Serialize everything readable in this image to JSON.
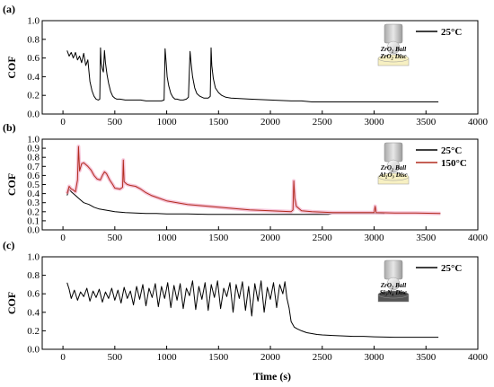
{
  "chart_data": [
    {
      "type": "line",
      "panel_label": "(a)",
      "ylabel": "COF",
      "xlabel": "",
      "xlim": [
        -200,
        4000
      ],
      "ylim": [
        0.0,
        1.0
      ],
      "xticks": [
        "0",
        "500",
        "1000",
        "1500",
        "2000",
        "2500",
        "3000",
        "3500",
        "4000"
      ],
      "yticks": [
        "0.0",
        "0.2",
        "0.4",
        "0.6",
        "0.8",
        "1.0"
      ],
      "legend_position": "top-right",
      "inset": {
        "ball": "ZrO2 Ball",
        "disc": "ZrO2 Disc",
        "disc_color": "#f7f0c2"
      },
      "series": [
        {
          "name": "25°C",
          "color": "#000000",
          "x": [
            40,
            60,
            80,
            100,
            120,
            140,
            160,
            180,
            200,
            220,
            240,
            260,
            280,
            300,
            320,
            340,
            355,
            362,
            368,
            380,
            390,
            400,
            410,
            425,
            440,
            460,
            480,
            500,
            520,
            550,
            600,
            650,
            700,
            750,
            800,
            850,
            900,
            950,
            975,
            985,
            995,
            1005,
            1020,
            1040,
            1060,
            1080,
            1100,
            1130,
            1160,
            1190,
            1210,
            1225,
            1235,
            1250,
            1270,
            1290,
            1320,
            1360,
            1400,
            1420,
            1428,
            1435,
            1450,
            1470,
            1500,
            1530,
            1570,
            1620,
            1700,
            1800,
            1900,
            2000,
            2100,
            2200,
            2300,
            2400,
            2600,
            2800,
            3000,
            3200,
            3400,
            3620
          ],
          "y": [
            0.68,
            0.62,
            0.66,
            0.6,
            0.66,
            0.58,
            0.62,
            0.55,
            0.65,
            0.52,
            0.58,
            0.35,
            0.25,
            0.19,
            0.16,
            0.15,
            0.16,
            0.71,
            0.55,
            0.48,
            0.45,
            0.68,
            0.55,
            0.42,
            0.33,
            0.24,
            0.19,
            0.17,
            0.16,
            0.16,
            0.15,
            0.15,
            0.15,
            0.15,
            0.14,
            0.14,
            0.14,
            0.14,
            0.15,
            0.7,
            0.55,
            0.4,
            0.3,
            0.22,
            0.18,
            0.16,
            0.16,
            0.15,
            0.15,
            0.16,
            0.18,
            0.67,
            0.55,
            0.4,
            0.28,
            0.22,
            0.19,
            0.17,
            0.17,
            0.19,
            0.71,
            0.52,
            0.38,
            0.28,
            0.23,
            0.2,
            0.18,
            0.17,
            0.165,
            0.16,
            0.155,
            0.15,
            0.145,
            0.14,
            0.14,
            0.13,
            0.13,
            0.13,
            0.13,
            0.13,
            0.13,
            0.13
          ]
        }
      ]
    },
    {
      "type": "line",
      "panel_label": "(b)",
      "ylabel": "COF",
      "xlabel": "",
      "xlim": [
        -200,
        4000
      ],
      "ylim": [
        0.0,
        1.0
      ],
      "xticks": [
        "0",
        "500",
        "1000",
        "1500",
        "2000",
        "2500",
        "3000",
        "3500",
        "4000"
      ],
      "yticks": [
        "0.0",
        "0.1",
        "0.2",
        "0.3",
        "0.4",
        "0.5",
        "0.6",
        "0.7",
        "0.8",
        "0.9",
        "1.0"
      ],
      "legend_position": "top-right",
      "inset": {
        "ball": "ZrO2 Ball",
        "disc": "Al2O3 Disc",
        "disc_color": "#f7f0c2"
      },
      "series": [
        {
          "name": "25°C",
          "color": "#000000",
          "x": [
            40,
            60,
            80,
            120,
            160,
            200,
            250,
            300,
            350,
            400,
            450,
            500,
            600,
            700,
            800,
            900,
            1000,
            1200,
            1400,
            1600,
            1800,
            2000,
            2200,
            2400,
            2560,
            2600,
            2800,
            3000,
            3100
          ],
          "y": [
            0.38,
            0.45,
            0.42,
            0.38,
            0.34,
            0.3,
            0.28,
            0.25,
            0.23,
            0.22,
            0.21,
            0.2,
            0.19,
            0.185,
            0.18,
            0.18,
            0.175,
            0.175,
            0.17,
            0.17,
            0.17,
            0.17,
            0.17,
            0.17,
            0.17,
            0.18,
            0.18,
            0.18,
            0.18
          ]
        },
        {
          "name": "150°C",
          "color": "#b22c1e",
          "x": [
            40,
            60,
            80,
            100,
            120,
            140,
            150,
            160,
            180,
            200,
            240,
            270,
            300,
            330,
            360,
            380,
            400,
            420,
            450,
            480,
            500,
            550,
            575,
            582,
            590,
            620,
            650,
            700,
            750,
            800,
            850,
            900,
            1000,
            1100,
            1200,
            1300,
            1400,
            1500,
            1600,
            1700,
            1800,
            1900,
            2000,
            2100,
            2200,
            2218,
            2226,
            2235,
            2250,
            2300,
            2400,
            2500,
            2600,
            2800,
            3000,
            3010,
            3020,
            3200,
            3400,
            3640
          ],
          "y": [
            0.4,
            0.48,
            0.45,
            0.44,
            0.42,
            0.55,
            0.92,
            0.65,
            0.73,
            0.74,
            0.7,
            0.66,
            0.6,
            0.56,
            0.55,
            0.6,
            0.64,
            0.62,
            0.55,
            0.5,
            0.46,
            0.45,
            0.47,
            0.77,
            0.53,
            0.5,
            0.49,
            0.48,
            0.45,
            0.41,
            0.38,
            0.36,
            0.32,
            0.3,
            0.28,
            0.27,
            0.26,
            0.25,
            0.24,
            0.23,
            0.22,
            0.215,
            0.21,
            0.205,
            0.2,
            0.22,
            0.54,
            0.35,
            0.26,
            0.21,
            0.2,
            0.195,
            0.19,
            0.19,
            0.19,
            0.26,
            0.19,
            0.185,
            0.185,
            0.18
          ]
        }
      ]
    },
    {
      "type": "line",
      "panel_label": "(c)",
      "ylabel": "COF",
      "xlabel": "Time (s)",
      "xlim": [
        -200,
        4000
      ],
      "ylim": [
        0.0,
        1.0
      ],
      "xticks": [
        "0",
        "500",
        "1000",
        "1500",
        "2000",
        "2500",
        "3000",
        "3500",
        "4000"
      ],
      "yticks": [
        "0.0",
        "0.2",
        "0.4",
        "0.6",
        "0.8",
        "1.0"
      ],
      "legend_position": "top-right",
      "inset": {
        "ball": "ZrO2 Ball",
        "disc": "Si3N4 Disc",
        "disc_color": "#555555"
      },
      "series": [
        {
          "name": "25°C",
          "color": "#000000",
          "x": [
            40,
            60,
            80,
            110,
            140,
            170,
            200,
            230,
            260,
            290,
            320,
            350,
            380,
            410,
            440,
            470,
            500,
            530,
            560,
            590,
            620,
            650,
            680,
            710,
            740,
            770,
            800,
            830,
            860,
            890,
            920,
            950,
            980,
            1010,
            1040,
            1070,
            1100,
            1130,
            1160,
            1190,
            1220,
            1250,
            1280,
            1310,
            1340,
            1370,
            1400,
            1430,
            1460,
            1490,
            1520,
            1550,
            1580,
            1610,
            1640,
            1670,
            1700,
            1730,
            1760,
            1790,
            1820,
            1850,
            1880,
            1910,
            1940,
            1970,
            2000,
            2030,
            2060,
            2090,
            2120,
            2140,
            2160,
            2180,
            2200,
            2230,
            2260,
            2300,
            2350,
            2400,
            2450,
            2500,
            2600,
            2700,
            2800,
            2900,
            3000,
            3200,
            3400,
            3620
          ],
          "y": [
            0.72,
            0.65,
            0.55,
            0.64,
            0.53,
            0.62,
            0.57,
            0.66,
            0.52,
            0.63,
            0.56,
            0.65,
            0.51,
            0.62,
            0.55,
            0.66,
            0.53,
            0.64,
            0.5,
            0.67,
            0.55,
            0.63,
            0.48,
            0.68,
            0.54,
            0.7,
            0.47,
            0.66,
            0.56,
            0.71,
            0.46,
            0.68,
            0.55,
            0.72,
            0.45,
            0.69,
            0.53,
            0.71,
            0.44,
            0.66,
            0.58,
            0.74,
            0.43,
            0.68,
            0.54,
            0.72,
            0.42,
            0.7,
            0.56,
            0.74,
            0.44,
            0.66,
            0.57,
            0.72,
            0.4,
            0.7,
            0.55,
            0.73,
            0.42,
            0.68,
            0.36,
            0.71,
            0.52,
            0.74,
            0.4,
            0.67,
            0.54,
            0.72,
            0.45,
            0.7,
            0.6,
            0.73,
            0.55,
            0.45,
            0.3,
            0.24,
            0.22,
            0.2,
            0.18,
            0.17,
            0.16,
            0.155,
            0.15,
            0.145,
            0.14,
            0.14,
            0.135,
            0.13,
            0.13,
            0.13
          ]
        }
      ]
    }
  ]
}
